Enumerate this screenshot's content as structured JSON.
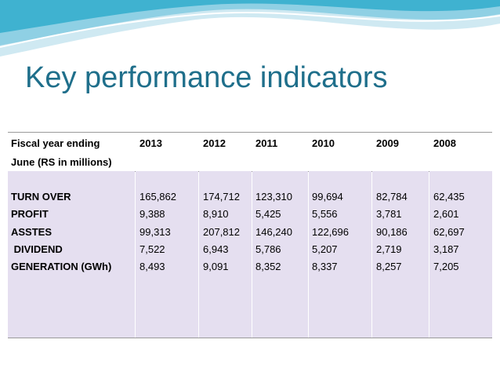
{
  "title": "Key performance indicators",
  "table": {
    "header": {
      "label_lines": [
        "Fiscal year ending",
        "June (RS in millions)"
      ],
      "years": [
        "2013",
        "2012",
        "2011",
        "2010",
        "2009",
        "2008"
      ]
    },
    "rows": [
      {
        "label": "TURN OVER",
        "values": [
          "165,862",
          "174,712",
          "123,310",
          "99,694",
          "82,784",
          "62,435"
        ]
      },
      {
        "label": "PROFIT",
        "values": [
          "9,388",
          "8,910",
          "5,425",
          "5,556",
          "3,781",
          "2,601"
        ]
      },
      {
        "label": "ASSTES",
        "values": [
          "99,313",
          "207,812",
          "146,240",
          "122,696",
          "90,186",
          "62,697"
        ]
      },
      {
        "label": " DIVIDEND",
        "values": [
          "7,522",
          "6,943",
          "5,786",
          "5,207",
          "2,719",
          "3,187"
        ]
      },
      {
        "label": "GENERATION (GWh)",
        "values": [
          "8,493",
          "9,091",
          "8,352",
          "8,337",
          "8,257",
          "7,205"
        ]
      }
    ]
  }
}
